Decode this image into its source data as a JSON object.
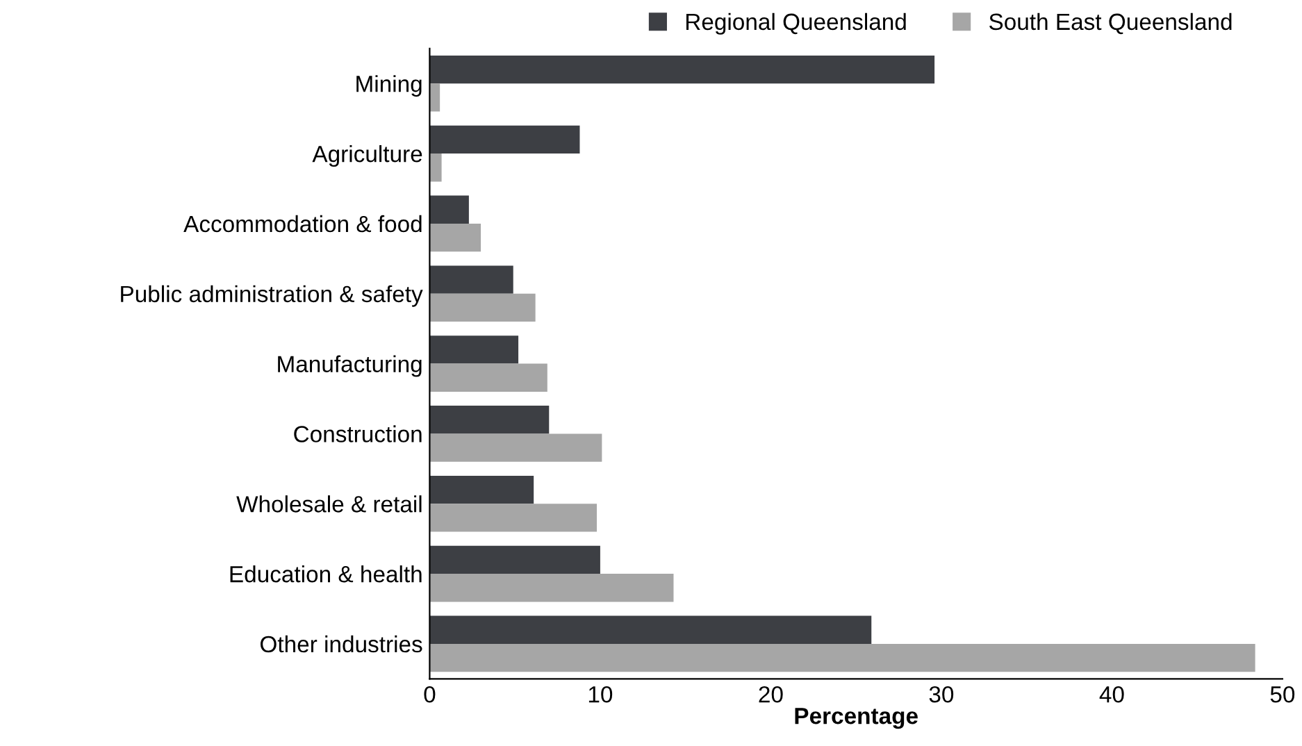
{
  "chart_data": {
    "type": "bar",
    "orientation": "horizontal",
    "xlabel": "Percentage",
    "categories": [
      "Mining",
      "Agriculture",
      "Accommodation & food",
      "Public administration & safety",
      "Manufacturing",
      "Construction",
      "Wholesale & retail",
      "Education & health",
      "Other industries"
    ],
    "series": [
      {
        "name": "Regional Queensland",
        "color": "#3d3f44",
        "values": [
          29.6,
          8.8,
          2.3,
          4.9,
          5.2,
          7.0,
          6.1,
          10.0,
          25.9
        ]
      },
      {
        "name": "South East Queensland",
        "color": "#a6a6a6",
        "values": [
          0.6,
          0.7,
          3.0,
          6.2,
          6.9,
          10.1,
          9.8,
          14.3,
          48.4
        ]
      }
    ],
    "xlim": [
      0,
      50
    ],
    "xticks": [
      0,
      10,
      20,
      30,
      40,
      50
    ],
    "grid": false,
    "legend": "top"
  }
}
